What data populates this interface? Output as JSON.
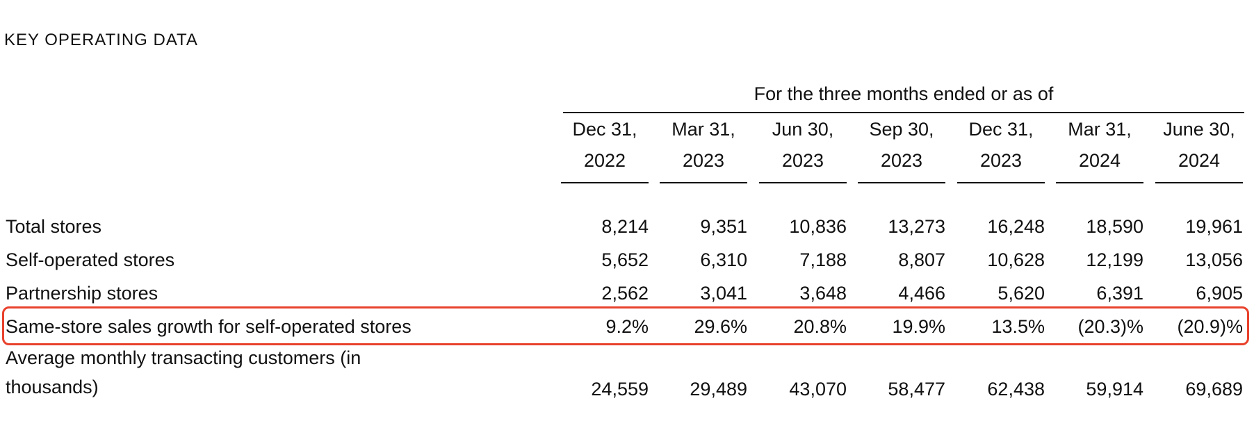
{
  "title": "KEY OPERATING DATA",
  "group_header": "For the three months ended or as of",
  "columns": [
    {
      "line1": "Dec 31,",
      "line2": "2022"
    },
    {
      "line1": "Mar 31,",
      "line2": "2023"
    },
    {
      "line1": "Jun 30,",
      "line2": "2023"
    },
    {
      "line1": "Sep 30,",
      "line2": "2023"
    },
    {
      "line1": "Dec 31,",
      "line2": "2023"
    },
    {
      "line1": "Mar 31,",
      "line2": "2024"
    },
    {
      "line1": "June 30,",
      "line2": "2024"
    }
  ],
  "rows": [
    {
      "label": "Total stores",
      "values": [
        "8,214",
        "9,351",
        "10,836",
        "13,273",
        "16,248",
        "18,590",
        "19,961"
      ]
    },
    {
      "label": "Self-operated stores",
      "values": [
        "5,652",
        "6,310",
        "7,188",
        "8,807",
        "10,628",
        "12,199",
        "13,056"
      ]
    },
    {
      "label": "Partnership stores",
      "values": [
        "2,562",
        "3,041",
        "3,648",
        "4,466",
        "5,620",
        "6,391",
        "6,905"
      ]
    },
    {
      "label": "Same-store sales growth for self-operated stores",
      "values": [
        "9.2%",
        "29.6%",
        "20.8%",
        "19.9%",
        "13.5%",
        "(20.3)%",
        "(20.9)%"
      ],
      "highlighted": true
    },
    {
      "label": "Average monthly transacting customers (in thousands)",
      "values": [
        "24,559",
        "29,489",
        "43,070",
        "58,477",
        "62,438",
        "59,914",
        "69,689"
      ]
    }
  ],
  "highlight_color": "#e8412c"
}
